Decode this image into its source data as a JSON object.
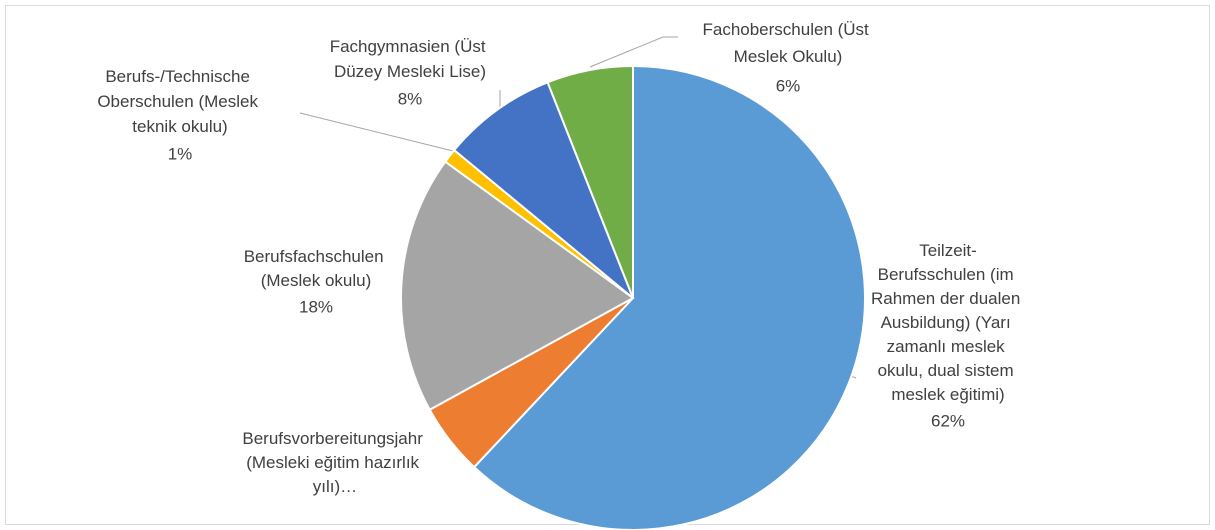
{
  "chart_data": {
    "type": "pie",
    "categories": [
      "Teilzeit-Berufsschulen (im Rahmen der dualen Ausbildung) (Yarı zamanlı meslek okulu, dual sistem meslek eğitimi)",
      "Berufsvorbereitungsjahr (Mesleki eğitim hazırlık yılı)…",
      "Berufsfachschulen (Meslek okulu)",
      "Berufs-/Technische Oberschulen (Meslek teknik okulu)",
      "Fachgymnasien (Üst Düzey Mesleki Lise)",
      "Fachoberschulen (Üst Meslek Okulu)"
    ],
    "values": [
      62,
      5,
      18,
      1,
      8,
      6
    ],
    "value_labels": [
      "62%",
      null,
      "18%",
      "1%",
      "8%",
      "6%"
    ],
    "colors": [
      "#5b9bd5",
      "#ed7d31",
      "#a5a5a5",
      "#ffc000",
      "#4472c4",
      "#70ad47"
    ]
  }
}
